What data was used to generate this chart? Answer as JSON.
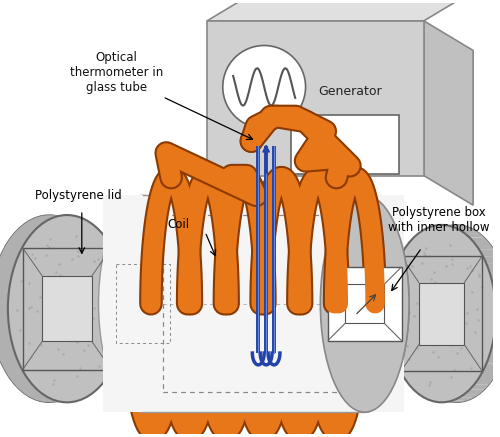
{
  "background_color": "#ffffff",
  "orange_color": "#E8771A",
  "blue_color": "#2244AA",
  "gray_box_face": "#D0D0D0",
  "gray_box_top": "#E0E0E0",
  "gray_box_right": "#C0C0C0",
  "gray_foam": "#C0C0C0",
  "gray_foam_texture": "#AAAAAA",
  "white_cyl": "#F5F5F5",
  "labels": {
    "optical": "Optical\nthermometer in\nglass tube",
    "coil": "Coil",
    "polystyrene_lid": "Polystyrene lid",
    "generator": "Generator",
    "polystyrene_box": "Polystyrene box\nwith inner hollow"
  }
}
